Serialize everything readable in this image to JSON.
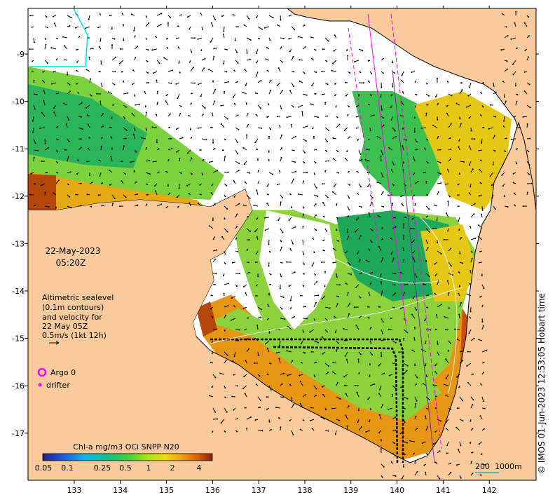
{
  "map": {
    "date": "22-May-2023",
    "time": "05:20Z",
    "altimetry_note": [
      "Altimetric sealevel",
      "(0.1m contours)",
      "and velocity for",
      "22 May 05Z",
      "0.5m/s (1kt 12h)"
    ],
    "legend": {
      "argo_label": "Argo 0",
      "drifter_label": "drifter"
    },
    "colorbar": {
      "title": "Chl-a mg/m3 OCi SNPP N20",
      "ticks": [
        "0.05",
        "0.1",
        "0.25",
        "0.5",
        "1",
        "2",
        "4"
      ]
    },
    "scale_bar": {
      "label1": "200",
      "label2": "1000m"
    },
    "lon_ticks": [
      "133",
      "134",
      "135",
      "136",
      "137",
      "138",
      "139",
      "140",
      "141",
      "142"
    ],
    "lat_ticks": [
      "-9",
      "-10",
      "-11",
      "-12",
      "-13",
      "-14",
      "-15",
      "-16",
      "-17"
    ],
    "credit": "© IMOS 01-Jun-2023 12:53:05 Hobart time",
    "colors": {
      "land": "#f9cb9c",
      "ocean_nodata": "#ffffff",
      "argo": "#ff00ff",
      "track": "#ff00ff",
      "cyan_track": "#00e5e5"
    }
  }
}
